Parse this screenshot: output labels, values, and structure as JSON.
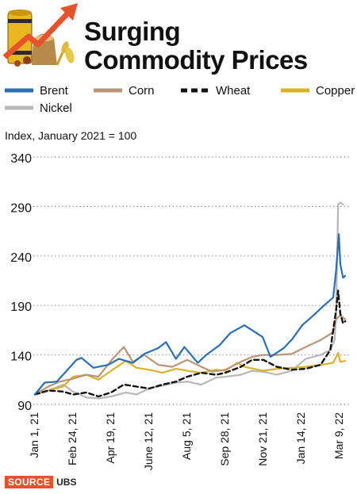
{
  "header": {
    "title_line1": "Surging",
    "title_line2": "Commodity Prices"
  },
  "subtitle": "Index, January 2021 = 100",
  "source": {
    "tag": "SOURCE",
    "value": "UBS"
  },
  "colors": {
    "brent": "#2a6fb2",
    "corn": "#b99478",
    "wheat": "#111111",
    "copper": "#d8b22a",
    "nickel": "#b8b8b8",
    "grid": "#9a9a9a",
    "arrow": "#e8532b",
    "barrel": "#e8b81e"
  },
  "legend": [
    {
      "key": "brent",
      "label": "Brent"
    },
    {
      "key": "corn",
      "label": "Corn"
    },
    {
      "key": "wheat",
      "label": "Wheat"
    },
    {
      "key": "copper",
      "label": "Copper"
    },
    {
      "key": "nickel",
      "label": "Nickel"
    }
  ],
  "chart_data": {
    "type": "line",
    "title": "Surging Commodity Prices",
    "ylabel": "Index, January 2021 = 100",
    "ylim": [
      90,
      340
    ],
    "yticks": [
      90,
      140,
      190,
      240,
      290,
      340
    ],
    "xlim": [
      "2021-01-01",
      "2022-03-18"
    ],
    "xticks": [
      {
        "date": "2021-01-01",
        "label": "Jan 1, 21"
      },
      {
        "date": "2021-02-24",
        "label": "Feb 24, 21"
      },
      {
        "date": "2021-04-19",
        "label": "Apr 19, 21"
      },
      {
        "date": "2021-06-12",
        "label": "June 12, 21"
      },
      {
        "date": "2021-08-05",
        "label": "Aug 5, 21"
      },
      {
        "date": "2021-09-28",
        "label": "Sep 28, 21"
      },
      {
        "date": "2021-11-21",
        "label": "Nov 21, 21"
      },
      {
        "date": "2022-01-14",
        "label": "Jan 14, 22"
      },
      {
        "date": "2022-03-09",
        "label": "Mar 9, 22"
      }
    ],
    "grid": "horizontal-dotted",
    "legend_position": "top",
    "series": [
      {
        "name": "Brent",
        "key": "brent",
        "dash": "solid",
        "points": [
          [
            "2021-01-01",
            100
          ],
          [
            "2021-01-15",
            112
          ],
          [
            "2021-02-01",
            113
          ],
          [
            "2021-02-15",
            124
          ],
          [
            "2021-03-01",
            135
          ],
          [
            "2021-03-08",
            137
          ],
          [
            "2021-03-25",
            127
          ],
          [
            "2021-04-15",
            130
          ],
          [
            "2021-04-30",
            136
          ],
          [
            "2021-05-20",
            132
          ],
          [
            "2021-06-05",
            141
          ],
          [
            "2021-06-25",
            147
          ],
          [
            "2021-07-06",
            153
          ],
          [
            "2021-07-20",
            136
          ],
          [
            "2021-08-01",
            148
          ],
          [
            "2021-08-20",
            132
          ],
          [
            "2021-09-01",
            140
          ],
          [
            "2021-09-20",
            150
          ],
          [
            "2021-10-05",
            162
          ],
          [
            "2021-10-25",
            170
          ],
          [
            "2021-11-05",
            165
          ],
          [
            "2021-11-20",
            158
          ],
          [
            "2021-12-01",
            138
          ],
          [
            "2021-12-20",
            147
          ],
          [
            "2022-01-01",
            156
          ],
          [
            "2022-01-15",
            170
          ],
          [
            "2022-01-31",
            180
          ],
          [
            "2022-02-15",
            190
          ],
          [
            "2022-02-28",
            198
          ],
          [
            "2022-03-04",
            225
          ],
          [
            "2022-03-08",
            262
          ],
          [
            "2022-03-10",
            232
          ],
          [
            "2022-03-14",
            218
          ],
          [
            "2022-03-17",
            220
          ]
        ]
      },
      {
        "name": "Corn",
        "key": "corn",
        "dash": "solid",
        "points": [
          [
            "2021-01-01",
            100
          ],
          [
            "2021-01-20",
            108
          ],
          [
            "2021-02-05",
            113
          ],
          [
            "2021-02-24",
            116
          ],
          [
            "2021-03-15",
            120
          ],
          [
            "2021-04-01",
            118
          ],
          [
            "2021-04-20",
            135
          ],
          [
            "2021-05-07",
            148
          ],
          [
            "2021-05-20",
            133
          ],
          [
            "2021-06-05",
            140
          ],
          [
            "2021-06-25",
            130
          ],
          [
            "2021-07-15",
            128
          ],
          [
            "2021-08-05",
            135
          ],
          [
            "2021-08-25",
            128
          ],
          [
            "2021-09-10",
            123
          ],
          [
            "2021-09-28",
            125
          ],
          [
            "2021-10-20",
            133
          ],
          [
            "2021-11-05",
            138
          ],
          [
            "2021-11-21",
            140
          ],
          [
            "2021-12-10",
            140
          ],
          [
            "2021-12-31",
            141
          ],
          [
            "2022-01-20",
            148
          ],
          [
            "2022-02-10",
            155
          ],
          [
            "2022-02-28",
            163
          ],
          [
            "2022-03-04",
            176
          ],
          [
            "2022-03-10",
            180
          ],
          [
            "2022-03-17",
            176
          ]
        ]
      },
      {
        "name": "Wheat",
        "key": "wheat",
        "dash": "dashed",
        "points": [
          [
            "2021-01-01",
            100
          ],
          [
            "2021-01-20",
            104
          ],
          [
            "2021-02-10",
            103
          ],
          [
            "2021-02-24",
            100
          ],
          [
            "2021-03-15",
            102
          ],
          [
            "2021-04-01",
            98
          ],
          [
            "2021-04-19",
            102
          ],
          [
            "2021-05-07",
            110
          ],
          [
            "2021-05-25",
            108
          ],
          [
            "2021-06-12",
            106
          ],
          [
            "2021-07-01",
            110
          ],
          [
            "2021-07-20",
            113
          ],
          [
            "2021-08-05",
            118
          ],
          [
            "2021-08-25",
            122
          ],
          [
            "2021-09-15",
            120
          ],
          [
            "2021-09-28",
            122
          ],
          [
            "2021-10-20",
            128
          ],
          [
            "2021-11-05",
            135
          ],
          [
            "2021-11-21",
            135
          ],
          [
            "2021-12-10",
            128
          ],
          [
            "2021-12-31",
            125
          ],
          [
            "2022-01-20",
            126
          ],
          [
            "2022-02-10",
            130
          ],
          [
            "2022-02-24",
            145
          ],
          [
            "2022-03-04",
            185
          ],
          [
            "2022-03-07",
            205
          ],
          [
            "2022-03-10",
            182
          ],
          [
            "2022-03-14",
            172
          ],
          [
            "2022-03-17",
            174
          ]
        ]
      },
      {
        "name": "Copper",
        "key": "copper",
        "dash": "solid",
        "points": [
          [
            "2021-01-01",
            100
          ],
          [
            "2021-01-20",
            104
          ],
          [
            "2021-02-10",
            108
          ],
          [
            "2021-02-24",
            118
          ],
          [
            "2021-03-15",
            120
          ],
          [
            "2021-04-01",
            115
          ],
          [
            "2021-04-19",
            124
          ],
          [
            "2021-05-10",
            134
          ],
          [
            "2021-05-25",
            127
          ],
          [
            "2021-06-12",
            125
          ],
          [
            "2021-07-01",
            122
          ],
          [
            "2021-07-20",
            126
          ],
          [
            "2021-08-05",
            124
          ],
          [
            "2021-08-25",
            122
          ],
          [
            "2021-09-15",
            125
          ],
          [
            "2021-09-28",
            124
          ],
          [
            "2021-10-15",
            132
          ],
          [
            "2021-10-25",
            128
          ],
          [
            "2021-11-21",
            124
          ],
          [
            "2021-12-10",
            126
          ],
          [
            "2021-12-31",
            127
          ],
          [
            "2022-01-20",
            128
          ],
          [
            "2022-02-10",
            130
          ],
          [
            "2022-02-28",
            132
          ],
          [
            "2022-03-07",
            142
          ],
          [
            "2022-03-10",
            133
          ],
          [
            "2022-03-17",
            134
          ]
        ]
      },
      {
        "name": "Nickel",
        "key": "nickel",
        "dash": "solid",
        "points": [
          [
            "2021-01-01",
            100
          ],
          [
            "2021-01-20",
            104
          ],
          [
            "2021-02-10",
            110
          ],
          [
            "2021-02-24",
            103
          ],
          [
            "2021-03-15",
            97
          ],
          [
            "2021-04-01",
            96
          ],
          [
            "2021-04-19",
            98
          ],
          [
            "2021-05-10",
            102
          ],
          [
            "2021-05-25",
            100
          ],
          [
            "2021-06-12",
            106
          ],
          [
            "2021-07-01",
            109
          ],
          [
            "2021-07-20",
            112
          ],
          [
            "2021-08-05",
            113
          ],
          [
            "2021-08-25",
            110
          ],
          [
            "2021-09-15",
            117
          ],
          [
            "2021-09-28",
            118
          ],
          [
            "2021-10-20",
            120
          ],
          [
            "2021-11-05",
            124
          ],
          [
            "2021-11-21",
            123
          ],
          [
            "2021-12-10",
            120
          ],
          [
            "2021-12-31",
            124
          ],
          [
            "2022-01-20",
            136
          ],
          [
            "2022-02-10",
            140
          ],
          [
            "2022-02-24",
            145
          ],
          [
            "2022-03-02",
            155
          ],
          [
            "2022-03-04",
            180
          ],
          [
            "2022-03-07",
            292
          ],
          [
            "2022-03-10",
            294
          ],
          [
            "2022-03-14",
            292
          ]
        ]
      }
    ]
  }
}
